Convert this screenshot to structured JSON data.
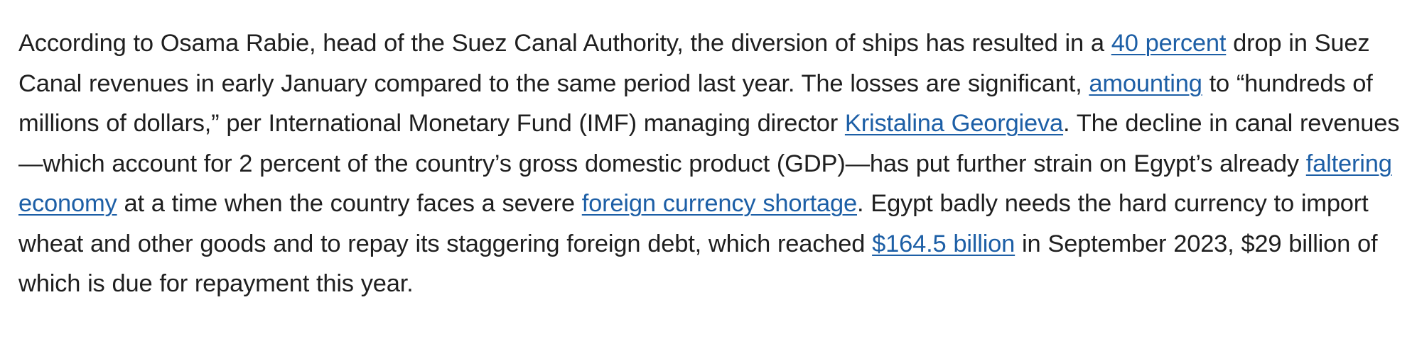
{
  "paragraph": {
    "segments": [
      {
        "text": "According to Osama Rabie, head of the Suez Canal Authority, the diversion of ships has resulted in a ",
        "link": false
      },
      {
        "text": "40 percent",
        "link": true
      },
      {
        "text": " drop in Suez Canal revenues in early January compared to the same period last year.  The losses are significant, ",
        "link": false
      },
      {
        "text": "amounting",
        "link": true
      },
      {
        "text": " to “hundreds of millions of dollars,” per International Monetary Fund (IMF) managing director ",
        "link": false
      },
      {
        "text": "Kristalina Georgieva",
        "link": true
      },
      {
        "text": ". The decline in canal revenues—which account for 2 percent of the country’s gross domestic product (GDP)—has put further strain on Egypt’s already ",
        "link": false
      },
      {
        "text": "faltering economy",
        "link": true
      },
      {
        "text": " at a time when the country faces a severe ",
        "link": false
      },
      {
        "text": "foreign currency shortage",
        "link": true
      },
      {
        "text": ". Egypt badly needs the hard currency to import wheat and other goods and to repay its staggering foreign debt, which reached ",
        "link": false
      },
      {
        "text": "$164.5 billion",
        "link": true
      },
      {
        "text": " in September 2023, $29 billion of which is due for repayment this year.",
        "link": false
      }
    ]
  },
  "colors": {
    "text": "#1f1f1f",
    "link": "#1d5fa6",
    "background": "#ffffff"
  }
}
